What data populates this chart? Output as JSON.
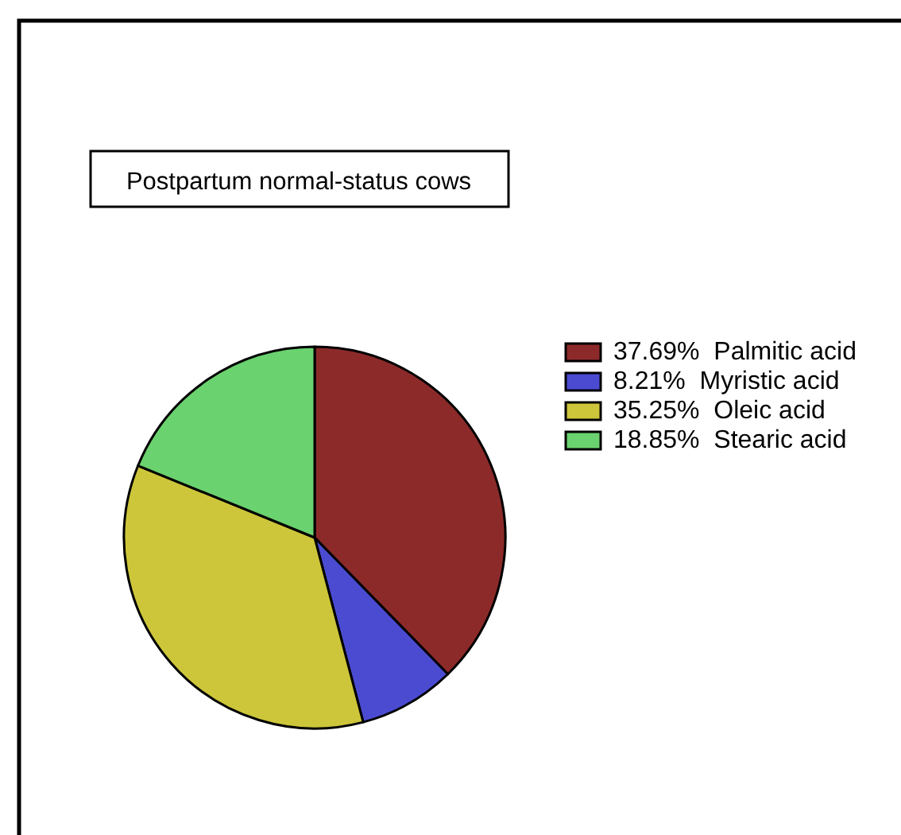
{
  "chart_data": {
    "type": "pie",
    "title": "Postpartum normal-status cows",
    "categories": [
      "Palmitic acid",
      "Myristic acid",
      "Oleic acid",
      "Stearic acid"
    ],
    "values": [
      37.69,
      8.21,
      35.25,
      18.85
    ],
    "value_labels": [
      "37.69%",
      "8.21%",
      "35.25%",
      "18.85%"
    ],
    "colors": [
      "#8c2a2a",
      "#4b4bd2",
      "#cdc63a",
      "#6ad26e"
    ],
    "legend": "right"
  }
}
